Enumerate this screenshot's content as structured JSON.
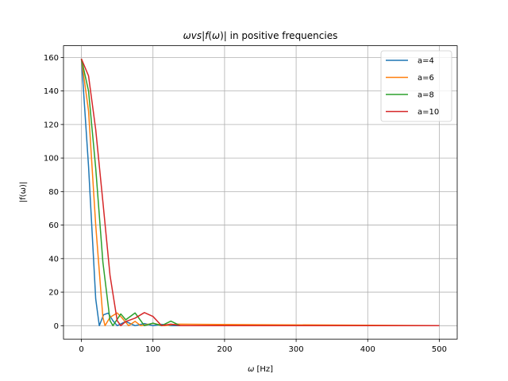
{
  "chart_data": {
    "type": "line",
    "title_parts": [
      "ω",
      "vs",
      "|",
      "f",
      "(",
      "ω",
      ")| in positive frequencies"
    ],
    "xlabel_parts": [
      "ω",
      " [Hz]"
    ],
    "ylabel": "|f(ω)|",
    "xlim": [
      -25,
      525
    ],
    "ylim": [
      -8,
      167
    ],
    "xticks": [
      0,
      100,
      200,
      300,
      400,
      500
    ],
    "yticks": [
      0,
      20,
      40,
      60,
      80,
      100,
      120,
      140,
      160
    ],
    "grid": true,
    "legend_position": "top-right",
    "x_range": [
      0,
      500
    ],
    "series": [
      {
        "name": "a=4",
        "color": "#1f77b4",
        "amplitude": 159.2,
        "x": [
          0,
          10,
          20,
          25,
          31,
          37.5,
          44,
          50,
          62,
          75,
          88,
          100,
          112,
          125
        ],
        "values": [
          159.2,
          95,
          16,
          0,
          6.5,
          7.5,
          3,
          0,
          2.5,
          0,
          1.3,
          0,
          0.8,
          0
        ]
      },
      {
        "name": "a=6",
        "color": "#ff7f0e",
        "amplitude": 159.2,
        "x": [
          0,
          10,
          20,
          30,
          33,
          40,
          50,
          56,
          66,
          75,
          83,
          100,
          116,
          133
        ],
        "values": [
          159.2,
          128,
          60,
          5,
          0,
          5,
          7.6,
          5,
          0,
          2.6,
          0,
          1.4,
          0,
          0.9
        ]
      },
      {
        "name": "a=8",
        "color": "#2ca02c",
        "amplitude": 159.2,
        "x": [
          0,
          10,
          20,
          30,
          40,
          44,
          55,
          62,
          75,
          88,
          100,
          112,
          125,
          138
        ],
        "values": [
          159.2,
          140,
          94,
          38,
          3,
          0,
          7,
          3.5,
          7.6,
          0,
          1.5,
          0,
          2.7,
          0
        ]
      },
      {
        "name": "a=10",
        "color": "#d62728",
        "amplitude": 159.2,
        "x": [
          0,
          10,
          20,
          30,
          40,
          50,
          55,
          62,
          75,
          88,
          100,
          112,
          125,
          138
        ],
        "values": [
          159.2,
          149,
          117,
          74,
          30,
          3,
          0,
          2.5,
          4.5,
          7.8,
          5.5,
          0,
          0.9,
          0
        ]
      }
    ]
  }
}
